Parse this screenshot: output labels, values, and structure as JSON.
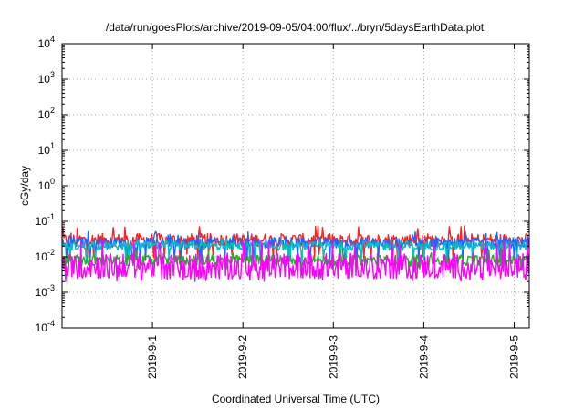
{
  "chart_data": {
    "type": "line",
    "title": "/data/run/goesPlots/archive/2019-09-05/04:00/flux/../bryn/5daysEarthData.plot",
    "xlabel": "Coordinated Universal Time (UTC)",
    "ylabel": "cGy/day",
    "yscale": "log",
    "ylim": [
      0.0001,
      10000
    ],
    "xlim": [
      "2019-08-31 00:00",
      "2019-09-05 04:00"
    ],
    "grid": true,
    "y_ticks": [
      {
        "value": 0.0001,
        "base": "10",
        "exp": "-4"
      },
      {
        "value": 0.001,
        "base": "10",
        "exp": "-3"
      },
      {
        "value": 0.01,
        "base": "10",
        "exp": "-2"
      },
      {
        "value": 0.1,
        "base": "10",
        "exp": "-1"
      },
      {
        "value": 1,
        "base": "10",
        "exp": "0"
      },
      {
        "value": 10,
        "base": "10",
        "exp": "1"
      },
      {
        "value": 100,
        "base": "10",
        "exp": "2"
      },
      {
        "value": 1000,
        "base": "10",
        "exp": "3"
      },
      {
        "value": 10000,
        "base": "10",
        "exp": "4"
      }
    ],
    "x_ticks": [
      {
        "value": "2019-09-01 00:00",
        "label": "2019-9-1"
      },
      {
        "value": "2019-09-02 00:00",
        "label": "2019-9-2"
      },
      {
        "value": "2019-09-03 00:00",
        "label": "2019-9-3"
      },
      {
        "value": "2019-09-04 00:00",
        "label": "2019-9-4"
      },
      {
        "value": "2019-09-05 00:00",
        "label": "2019-9-5"
      }
    ],
    "series": [
      {
        "color": "#ff2020",
        "base": 0.03,
        "peak": 0.065,
        "dip": 0.01,
        "dip_rate": 0.06,
        "jitter": 0.06
      },
      {
        "color": "#1e66ff",
        "base": 0.025,
        "peak": 0.045,
        "dip": 0.007,
        "dip_rate": 0.07,
        "jitter": 0.05
      },
      {
        "color": "#00c0c0",
        "base": 0.02,
        "peak": 0.03,
        "dip": 0.007,
        "dip_rate": 0.05,
        "jitter": 0.04
      },
      {
        "color": "#20b020",
        "base": 0.008,
        "peak": 0.015,
        "dip": 0.005,
        "dip_rate": 0.04,
        "jitter": 0.05
      },
      {
        "color": "#ff00ff",
        "base": 0.0055,
        "peak": 0.025,
        "dip": 0.0025,
        "dip_rate": 0.1,
        "jitter": 0.12
      }
    ]
  }
}
